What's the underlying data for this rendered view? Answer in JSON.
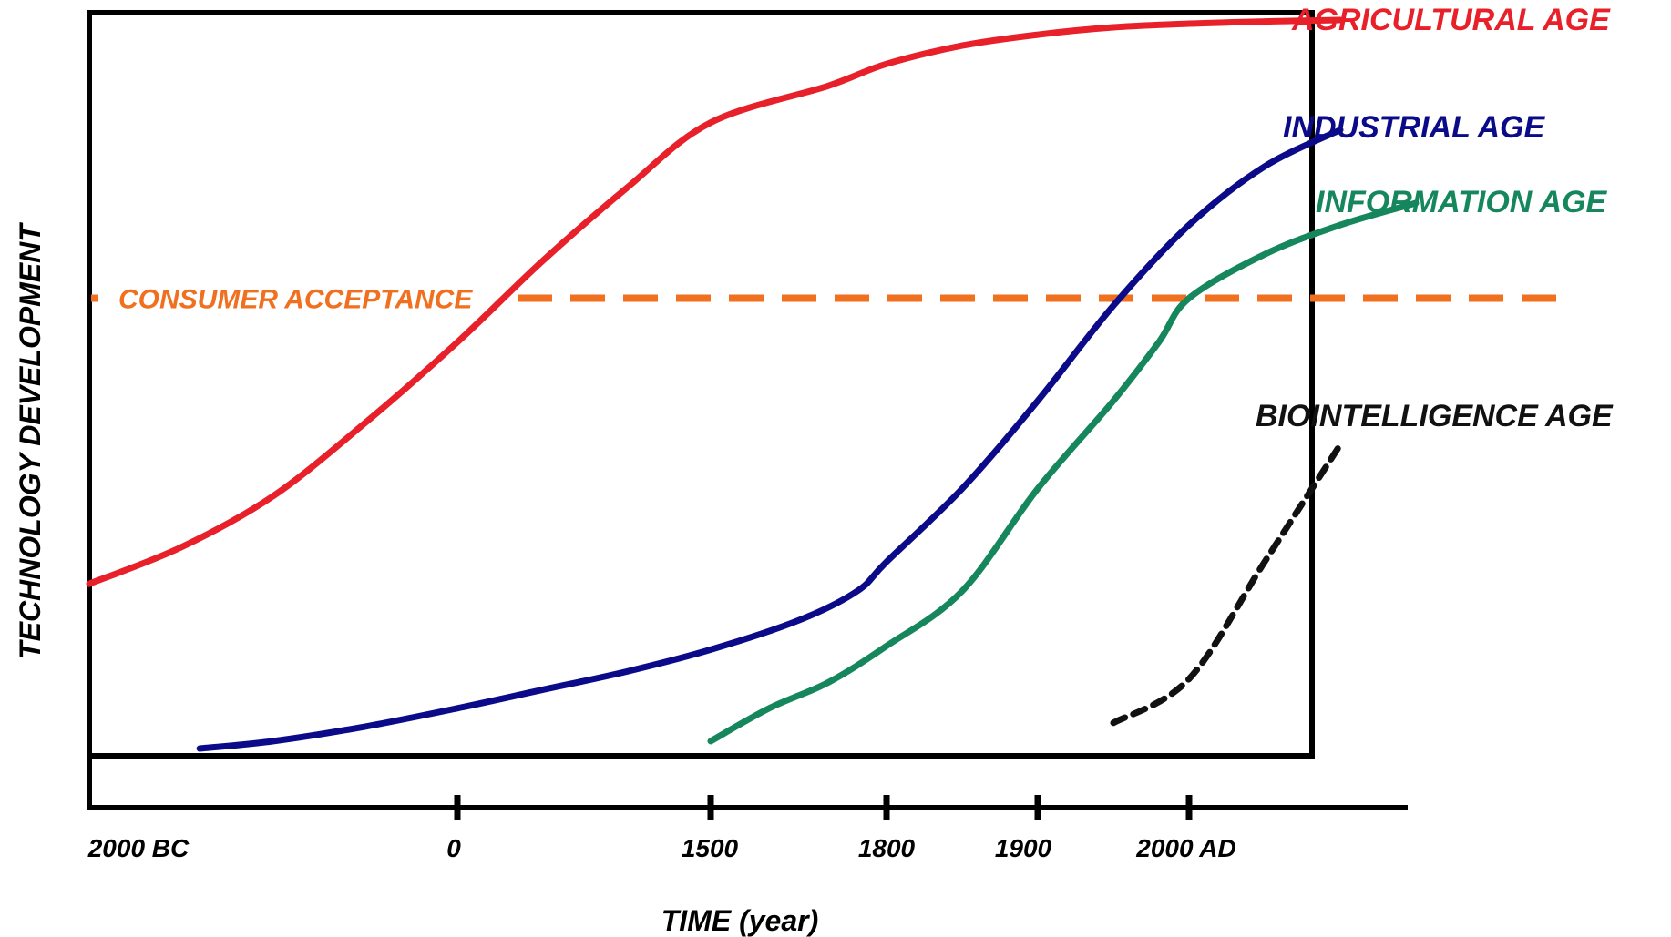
{
  "chart_data": {
    "type": "line",
    "xlabel": "TIME (year)",
    "ylabel": "TECHNOLOGY DEVELOPMENT",
    "x_ticks": [
      {
        "label": "2000 BC",
        "value": -2000,
        "tick": false
      },
      {
        "label": "0",
        "value": 0,
        "tick": true
      },
      {
        "label": "1500",
        "value": 1500,
        "tick": true
      },
      {
        "label": "1800",
        "value": 1800,
        "tick": true
      },
      {
        "label": "1900",
        "value": 1900,
        "tick": true
      },
      {
        "label": "2000 AD",
        "value": 2000,
        "tick": true
      }
    ],
    "ylim": [
      0,
      100
    ],
    "grid": false,
    "legend": "labels at line ends (right)",
    "reference_line": {
      "label": "CONSUMER ACCEPTANCE",
      "y": 62,
      "color": "#f07020",
      "style": "dashed"
    },
    "series": [
      {
        "name": "AGRICULTURAL AGE",
        "color": "#e8202a",
        "style": "solid",
        "points": [
          [
            -2000,
            23
          ],
          [
            -1500,
            28
          ],
          [
            -1000,
            35
          ],
          [
            -500,
            45
          ],
          [
            0,
            56
          ],
          [
            500,
            67
          ],
          [
            1000,
            77
          ],
          [
            1500,
            86
          ],
          [
            1700,
            91
          ],
          [
            1800,
            94
          ],
          [
            1850,
            96.5
          ],
          [
            1900,
            98
          ],
          [
            1950,
            99
          ],
          [
            2000,
            99.5
          ],
          [
            2050,
            99.8
          ],
          [
            2100,
            100
          ]
        ]
      },
      {
        "name": "INDUSTRIAL AGE",
        "color": "#0b0b8a",
        "style": "solid",
        "points": [
          [
            -1400,
            0.5
          ],
          [
            -1000,
            1.5
          ],
          [
            -500,
            3.5
          ],
          [
            0,
            6
          ],
          [
            500,
            8.5
          ],
          [
            1000,
            11
          ],
          [
            1500,
            14
          ],
          [
            1650,
            18
          ],
          [
            1750,
            22
          ],
          [
            1800,
            26
          ],
          [
            1850,
            36
          ],
          [
            1900,
            48
          ],
          [
            1950,
            61
          ],
          [
            2000,
            72
          ],
          [
            2050,
            80
          ],
          [
            2100,
            85
          ]
        ]
      },
      {
        "name": "INFORMATION AGE",
        "color": "#16875c",
        "style": "solid",
        "points": [
          [
            1500,
            1.5
          ],
          [
            1600,
            6
          ],
          [
            1700,
            9.5
          ],
          [
            1800,
            14.5
          ],
          [
            1850,
            22
          ],
          [
            1900,
            36
          ],
          [
            1950,
            48
          ],
          [
            1980,
            56
          ],
          [
            2000,
            62
          ],
          [
            2050,
            68
          ],
          [
            2100,
            72
          ],
          [
            2150,
            75
          ]
        ]
      },
      {
        "name": "BIOINTELLIGENCE AGE",
        "color": "#111111",
        "style": "dashed",
        "points": [
          [
            1950,
            4
          ],
          [
            2000,
            10
          ],
          [
            2050,
            26
          ],
          [
            2100,
            42
          ]
        ]
      }
    ]
  }
}
